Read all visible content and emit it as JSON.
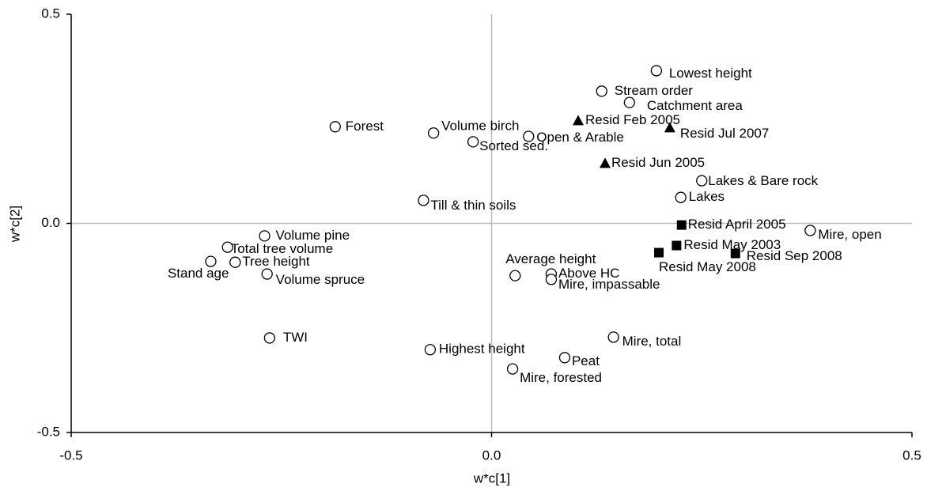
{
  "chart_data": {
    "type": "scatter",
    "xlabel": "w*c[1]",
    "ylabel": "w*c[2]",
    "xlim": [
      -0.5,
      0.5
    ],
    "ylim": [
      -0.5,
      0.5
    ],
    "xticks": [
      {
        "value": -0.5,
        "label": "-0.5"
      },
      {
        "value": 0,
        "label": "0.0"
      },
      {
        "value": 0.5,
        "label": "0.5"
      }
    ],
    "yticks": [
      {
        "value": -0.5,
        "label": "-0.5"
      },
      {
        "value": 0,
        "label": "0.0"
      },
      {
        "value": 0.5,
        "label": "0.5"
      }
    ],
    "zero_lines": true,
    "color": "#000000",
    "points": [
      {
        "label": "Lowest height",
        "x": 0.196,
        "y": 0.365,
        "marker": "circle"
      },
      {
        "label": "Stream order",
        "x": 0.131,
        "y": 0.316,
        "marker": "circle"
      },
      {
        "label": "Catchment area",
        "x": 0.164,
        "y": 0.289,
        "marker": "circle"
      },
      {
        "label": "Forest",
        "x": -0.186,
        "y": 0.231,
        "marker": "circle"
      },
      {
        "label": "Volume birch",
        "x": -0.069,
        "y": 0.216,
        "marker": "circle"
      },
      {
        "label": "Open & Arable",
        "x": 0.044,
        "y": 0.208,
        "marker": "circle"
      },
      {
        "label": "Sorted sed.",
        "x": -0.022,
        "y": 0.195,
        "marker": "circle"
      },
      {
        "label": "Lakes & Bare rock",
        "x": 0.25,
        "y": 0.102,
        "marker": "circle"
      },
      {
        "label": "Lakes",
        "x": 0.225,
        "y": 0.062,
        "marker": "circle"
      },
      {
        "label": "Till & thin soils",
        "x": -0.081,
        "y": 0.055,
        "marker": "circle"
      },
      {
        "label": "Mire, open",
        "x": 0.379,
        "y": -0.017,
        "marker": "circle"
      },
      {
        "label": "Volume pine",
        "x": -0.27,
        "y": -0.03,
        "marker": "circle"
      },
      {
        "label": "Total tree volume",
        "x": -0.314,
        "y": -0.057,
        "marker": "circle"
      },
      {
        "label": "Stand age",
        "x": -0.334,
        "y": -0.091,
        "marker": "circle"
      },
      {
        "label": "Tree height",
        "x": -0.305,
        "y": -0.093,
        "marker": "circle"
      },
      {
        "label": "Volume spruce",
        "x": -0.267,
        "y": -0.121,
        "marker": "circle"
      },
      {
        "label": "Average height",
        "x": 0.028,
        "y": -0.125,
        "marker": "circle"
      },
      {
        "label": "Above HC",
        "x": 0.071,
        "y": -0.121,
        "marker": "circle"
      },
      {
        "label": "Mire, impassable",
        "x": 0.071,
        "y": -0.134,
        "marker": "circle"
      },
      {
        "label": "TWI",
        "x": -0.264,
        "y": -0.274,
        "marker": "circle"
      },
      {
        "label": "Highest height",
        "x": -0.073,
        "y": -0.302,
        "marker": "circle"
      },
      {
        "label": "Mire, total",
        "x": 0.145,
        "y": -0.272,
        "marker": "circle"
      },
      {
        "label": "Peat",
        "x": 0.087,
        "y": -0.321,
        "marker": "circle"
      },
      {
        "label": "Mire, forested",
        "x": 0.025,
        "y": -0.348,
        "marker": "circle"
      },
      {
        "label": "Resid Feb 2005",
        "x": 0.103,
        "y": 0.246,
        "marker": "triangle"
      },
      {
        "label": "Resid Jul 2007",
        "x": 0.212,
        "y": 0.229,
        "marker": "triangle"
      },
      {
        "label": "Resid Jun 2005",
        "x": 0.135,
        "y": 0.144,
        "marker": "triangle"
      },
      {
        "label": "Resid April 2005",
        "x": 0.226,
        "y": -0.004,
        "marker": "square"
      },
      {
        "label": "Resid May 2003",
        "x": 0.22,
        "y": -0.053,
        "marker": "square"
      },
      {
        "label": "Resid May 2008",
        "x": 0.199,
        "y": -0.07,
        "marker": "square"
      },
      {
        "label": "Resid Sep 2008",
        "x": 0.29,
        "y": -0.072,
        "marker": "square"
      }
    ]
  }
}
